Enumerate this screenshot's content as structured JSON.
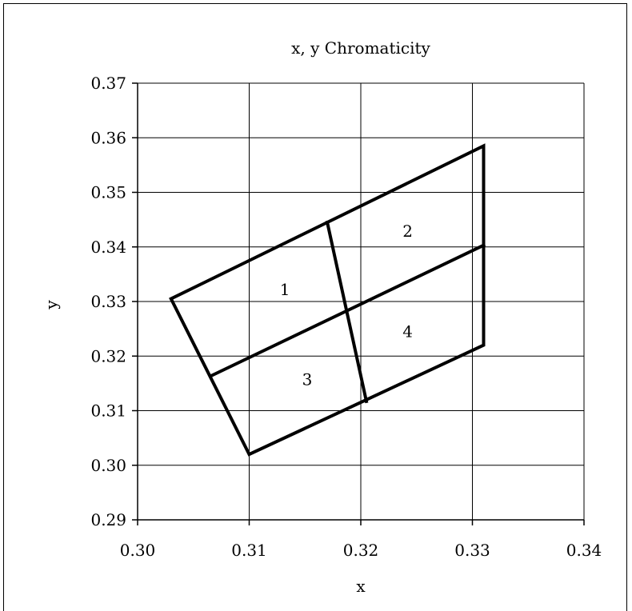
{
  "chart_data": {
    "type": "line",
    "title": "x, y Chromaticity",
    "xlabel": "x",
    "ylabel": "y",
    "xlim": [
      0.3,
      0.34
    ],
    "ylim": [
      0.29,
      0.37
    ],
    "xticks": [
      0.3,
      0.31,
      0.32,
      0.33,
      0.34
    ],
    "yticks": [
      0.29,
      0.3,
      0.31,
      0.32,
      0.33,
      0.34,
      0.35,
      0.36,
      0.37
    ],
    "xtick_labels": [
      "0.30",
      "0.31",
      "0.32",
      "0.33",
      "0.34"
    ],
    "ytick_labels": [
      "0.29",
      "0.30",
      "0.31",
      "0.32",
      "0.33",
      "0.34",
      "0.35",
      "0.36",
      "0.37"
    ],
    "grid": true,
    "series": [
      {
        "x": [
          0.303,
          0.31,
          0.331,
          0.331,
          0.303
        ],
        "y": [
          0.3305,
          0.302,
          0.322,
          0.3585,
          0.3305
        ]
      },
      {
        "x": [
          0.3065,
          0.331
        ],
        "y": [
          0.3163,
          0.3403
        ]
      },
      {
        "x": [
          0.317,
          0.3205
        ],
        "y": [
          0.3445,
          0.3117
        ]
      }
    ],
    "annotations": [
      {
        "text": "1",
        "x": 0.3132,
        "y": 0.3322
      },
      {
        "text": "2",
        "x": 0.3242,
        "y": 0.3429
      },
      {
        "text": "3",
        "x": 0.3152,
        "y": 0.3157
      },
      {
        "text": "4",
        "x": 0.3242,
        "y": 0.3245
      }
    ]
  }
}
